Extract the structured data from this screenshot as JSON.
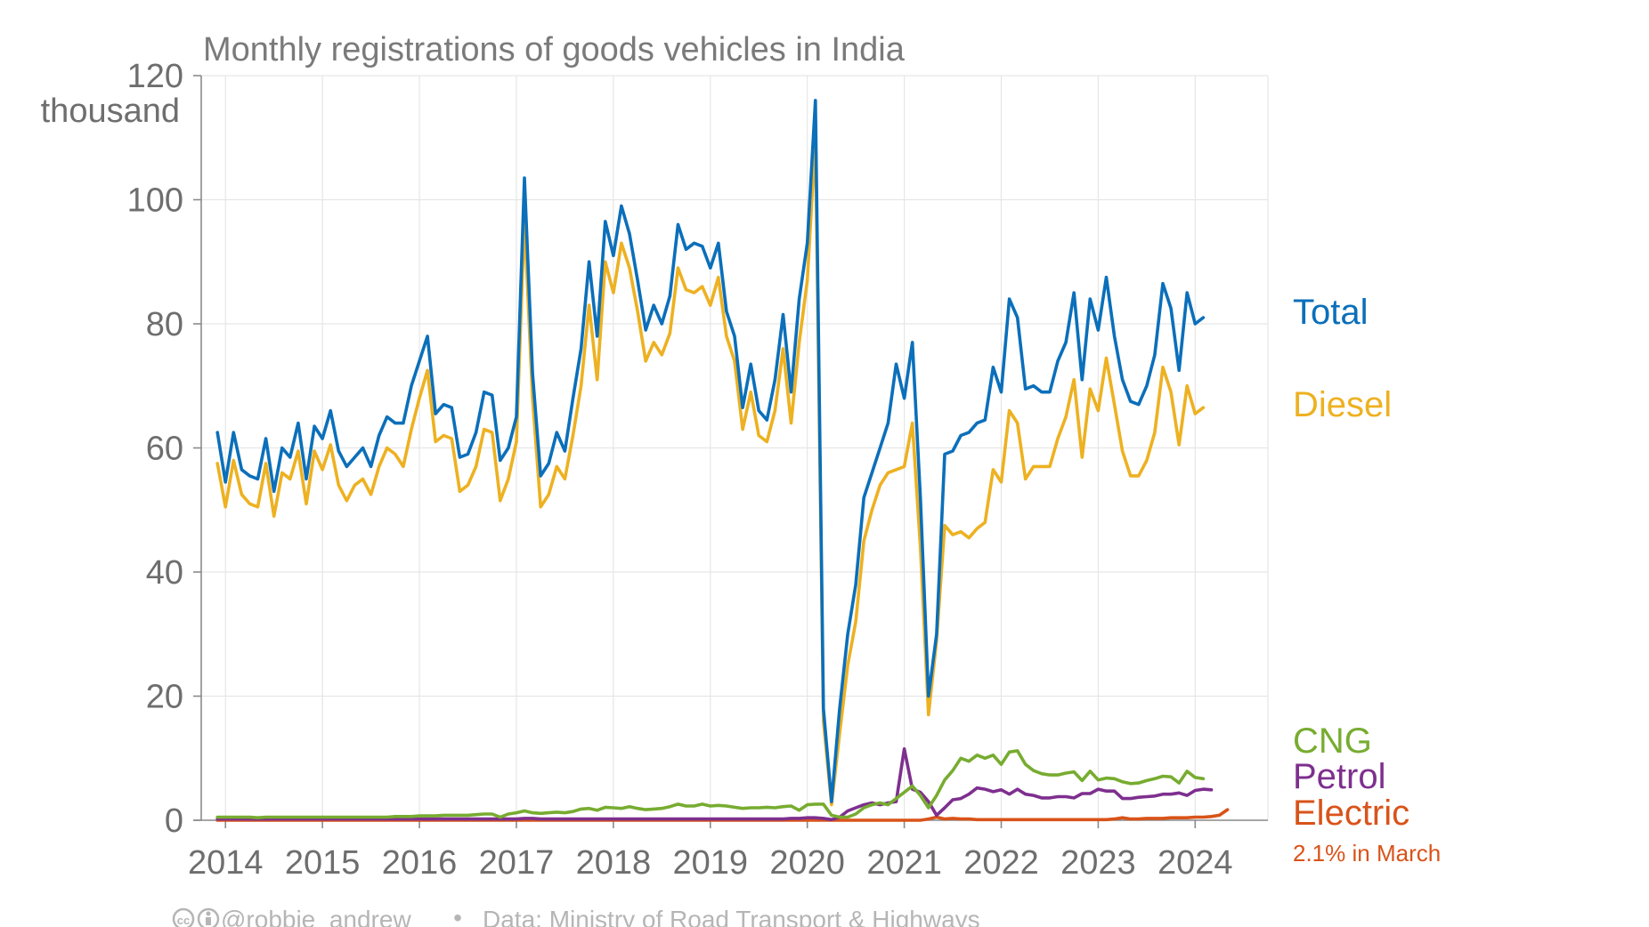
{
  "chart_data": {
    "type": "line",
    "title": "Monthly registrations of goods vehicles in India",
    "ylabel": "thousand",
    "xlabel": "",
    "ylim": [
      0,
      120
    ],
    "yticks": [
      0,
      20,
      40,
      60,
      80,
      100,
      120
    ],
    "xticks": [
      "2014",
      "2015",
      "2016",
      "2017",
      "2018",
      "2019",
      "2020",
      "2021",
      "2022",
      "2023",
      "2024"
    ],
    "xlim": [
      "2013-10",
      "2024-10"
    ],
    "grid": true,
    "legend": "right, labels at line ends",
    "x_start": "2013-12",
    "series": [
      {
        "name": "Total",
        "color": "#0b6fba",
        "values": [
          62.5,
          54.5,
          62.5,
          56.5,
          55.5,
          55,
          61.5,
          53,
          60,
          58.5,
          64,
          55,
          63.5,
          61.5,
          66,
          59.5,
          57,
          58.5,
          60,
          57,
          62,
          65,
          64,
          64,
          70,
          74,
          78,
          65.5,
          67,
          66.5,
          58.5,
          59,
          62.5,
          69,
          68.5,
          58,
          60,
          65,
          103.5,
          72,
          55.5,
          57.5,
          62.5,
          59.5,
          68,
          76,
          90,
          78,
          96.5,
          91,
          99,
          94.5,
          87,
          79,
          83,
          80,
          84.5,
          96,
          92,
          93,
          92.5,
          89,
          93,
          82,
          78,
          66.5,
          73.5,
          66,
          64.5,
          71,
          81.5,
          69,
          84,
          93,
          116,
          18,
          3,
          18,
          30,
          38,
          52,
          56,
          60,
          64,
          73.5,
          68,
          77,
          52,
          20,
          30,
          59,
          59.5,
          62,
          62.5,
          64,
          64.5,
          73,
          69,
          84,
          81,
          69.5,
          70,
          69,
          69,
          74,
          77,
          85,
          71,
          84,
          79,
          87.5,
          78,
          71,
          67.5,
          67,
          70,
          75,
          86.5,
          82.5,
          72.5,
          85,
          80,
          81
        ]
      },
      {
        "name": "Diesel",
        "color": "#edb121",
        "values": [
          57.5,
          50.5,
          58,
          52.5,
          51,
          50.5,
          57.5,
          49,
          56,
          55,
          59.5,
          51,
          59.5,
          56.5,
          60.5,
          54,
          51.5,
          54,
          55,
          52.5,
          57,
          60,
          59,
          57,
          63,
          68,
          72.5,
          61,
          62,
          61.5,
          53,
          54,
          57,
          63,
          62.5,
          51.5,
          55,
          61,
          97,
          68,
          50.5,
          52.5,
          57,
          55,
          62,
          70,
          83,
          71,
          90,
          85,
          93,
          89,
          82,
          74,
          77,
          75,
          78.5,
          89,
          85.5,
          85,
          86,
          83,
          87.5,
          78,
          74,
          63,
          69,
          62,
          61,
          66,
          76,
          64,
          77,
          87,
          110,
          16,
          2.5,
          14,
          25,
          32,
          45,
          50,
          54,
          56,
          56.5,
          57,
          64,
          44,
          17,
          29,
          47.5,
          46,
          46.5,
          45.5,
          47,
          48,
          56.5,
          54.5,
          66,
          64,
          55,
          57,
          57,
          57,
          61.5,
          65,
          71,
          58.5,
          69.5,
          66,
          74.5,
          67,
          59.5,
          55.5,
          55.5,
          58,
          62.5,
          73,
          69,
          60.5,
          70,
          65.5,
          66.5
        ]
      },
      {
        "name": "CNG",
        "color": "#77ac30",
        "values": [
          0.5,
          0.5,
          0.5,
          0.5,
          0.5,
          0.4,
          0.5,
          0.5,
          0.5,
          0.5,
          0.5,
          0.5,
          0.5,
          0.5,
          0.5,
          0.5,
          0.5,
          0.5,
          0.5,
          0.5,
          0.5,
          0.5,
          0.6,
          0.6,
          0.6,
          0.7,
          0.7,
          0.7,
          0.8,
          0.8,
          0.8,
          0.8,
          0.9,
          1,
          1,
          0.5,
          1,
          1.2,
          1.5,
          1.2,
          1.1,
          1.2,
          1.3,
          1.2,
          1.4,
          1.8,
          1.9,
          1.6,
          2.1,
          2,
          1.9,
          2.2,
          1.9,
          1.7,
          1.8,
          1.9,
          2.2,
          2.6,
          2.3,
          2.3,
          2.6,
          2.3,
          2.4,
          2.3,
          2.1,
          1.9,
          2,
          2,
          2.1,
          2,
          2.2,
          2.3,
          1.6,
          2.5,
          2.6,
          2.6,
          0.8,
          0.5,
          0.5,
          1,
          2,
          2.5,
          2.8,
          2.5,
          3.5,
          4.5,
          5.5,
          4,
          2,
          4,
          6.5,
          8,
          10,
          9.5,
          10.5,
          10,
          10.5,
          9,
          11,
          11.2,
          9,
          8,
          7.5,
          7.3,
          7.3,
          7.6,
          7.8,
          6.4,
          7.9,
          6.5,
          6.8,
          6.7,
          6.2,
          5.9,
          6,
          6.4,
          6.7,
          7.1,
          7,
          6,
          7.9,
          6.9,
          6.7
        ]
      },
      {
        "name": "Petrol",
        "color": "#7e2f8e",
        "values": [
          0.2,
          0.2,
          0.2,
          0.2,
          0.2,
          0.2,
          0.2,
          0.2,
          0.2,
          0.2,
          0.2,
          0.2,
          0.2,
          0.2,
          0.2,
          0.2,
          0.2,
          0.2,
          0.2,
          0.2,
          0.2,
          0.2,
          0.2,
          0.2,
          0.2,
          0.2,
          0.2,
          0.2,
          0.2,
          0.2,
          0.2,
          0.2,
          0.2,
          0.2,
          0.2,
          0.2,
          0.2,
          0.2,
          0.3,
          0.3,
          0.2,
          0.2,
          0.2,
          0.2,
          0.2,
          0.2,
          0.2,
          0.2,
          0.2,
          0.2,
          0.2,
          0.2,
          0.2,
          0.2,
          0.2,
          0.2,
          0.2,
          0.2,
          0.2,
          0.2,
          0.2,
          0.2,
          0.2,
          0.2,
          0.2,
          0.2,
          0.2,
          0.2,
          0.2,
          0.2,
          0.2,
          0.3,
          0.3,
          0.4,
          0.4,
          0.3,
          0.1,
          0.5,
          1.5,
          2,
          2.5,
          2.8,
          2.5,
          2.8,
          3,
          11.5,
          5,
          4.5,
          3,
          0.8,
          2,
          3.3,
          3.5,
          4.2,
          5.2,
          5,
          4.6,
          4.9,
          4.2,
          5,
          4.2,
          4,
          3.6,
          3.6,
          3.8,
          3.8,
          3.6,
          4.3,
          4.3,
          5,
          4.7,
          4.7,
          3.5,
          3.5,
          3.7,
          3.8,
          3.9,
          4.2,
          4.2,
          4.4,
          4,
          4.8,
          5,
          4.9
        ]
      },
      {
        "name": "Electric",
        "color": "#d95319",
        "values": [
          0,
          0,
          0,
          0,
          0,
          0,
          0,
          0,
          0,
          0,
          0,
          0,
          0,
          0,
          0,
          0,
          0,
          0,
          0,
          0,
          0,
          0,
          0,
          0,
          0,
          0,
          0,
          0,
          0,
          0,
          0,
          0,
          0,
          0,
          0,
          0,
          0,
          0,
          0,
          0,
          0,
          0,
          0,
          0,
          0,
          0,
          0,
          0,
          0,
          0,
          0,
          0,
          0,
          0,
          0,
          0,
          0,
          0,
          0,
          0,
          0,
          0,
          0,
          0,
          0,
          0,
          0,
          0,
          0,
          0,
          0,
          0,
          0,
          0,
          0,
          0,
          0,
          0,
          0,
          0,
          0,
          0,
          0,
          0,
          0,
          0,
          0,
          0,
          0.2,
          0.5,
          0.2,
          0.3,
          0.2,
          0.2,
          0.1,
          0.1,
          0.1,
          0.1,
          0.1,
          0.1,
          0.1,
          0.1,
          0.1,
          0.1,
          0.1,
          0.1,
          0.1,
          0.1,
          0.1,
          0.1,
          0.1,
          0.2,
          0.4,
          0.2,
          0.2,
          0.3,
          0.3,
          0.3,
          0.4,
          0.4,
          0.4,
          0.5,
          0.5,
          0.6,
          0.8,
          1.7
        ]
      }
    ],
    "annotations": [
      {
        "series": "Electric",
        "text": "2.1% in March"
      }
    ]
  },
  "footer": {
    "icons": [
      "cc-icon",
      "by-icon"
    ],
    "handle": "@robbie_andrew",
    "separator": "•",
    "source": "Data: Ministry of Road Transport & Highways"
  }
}
